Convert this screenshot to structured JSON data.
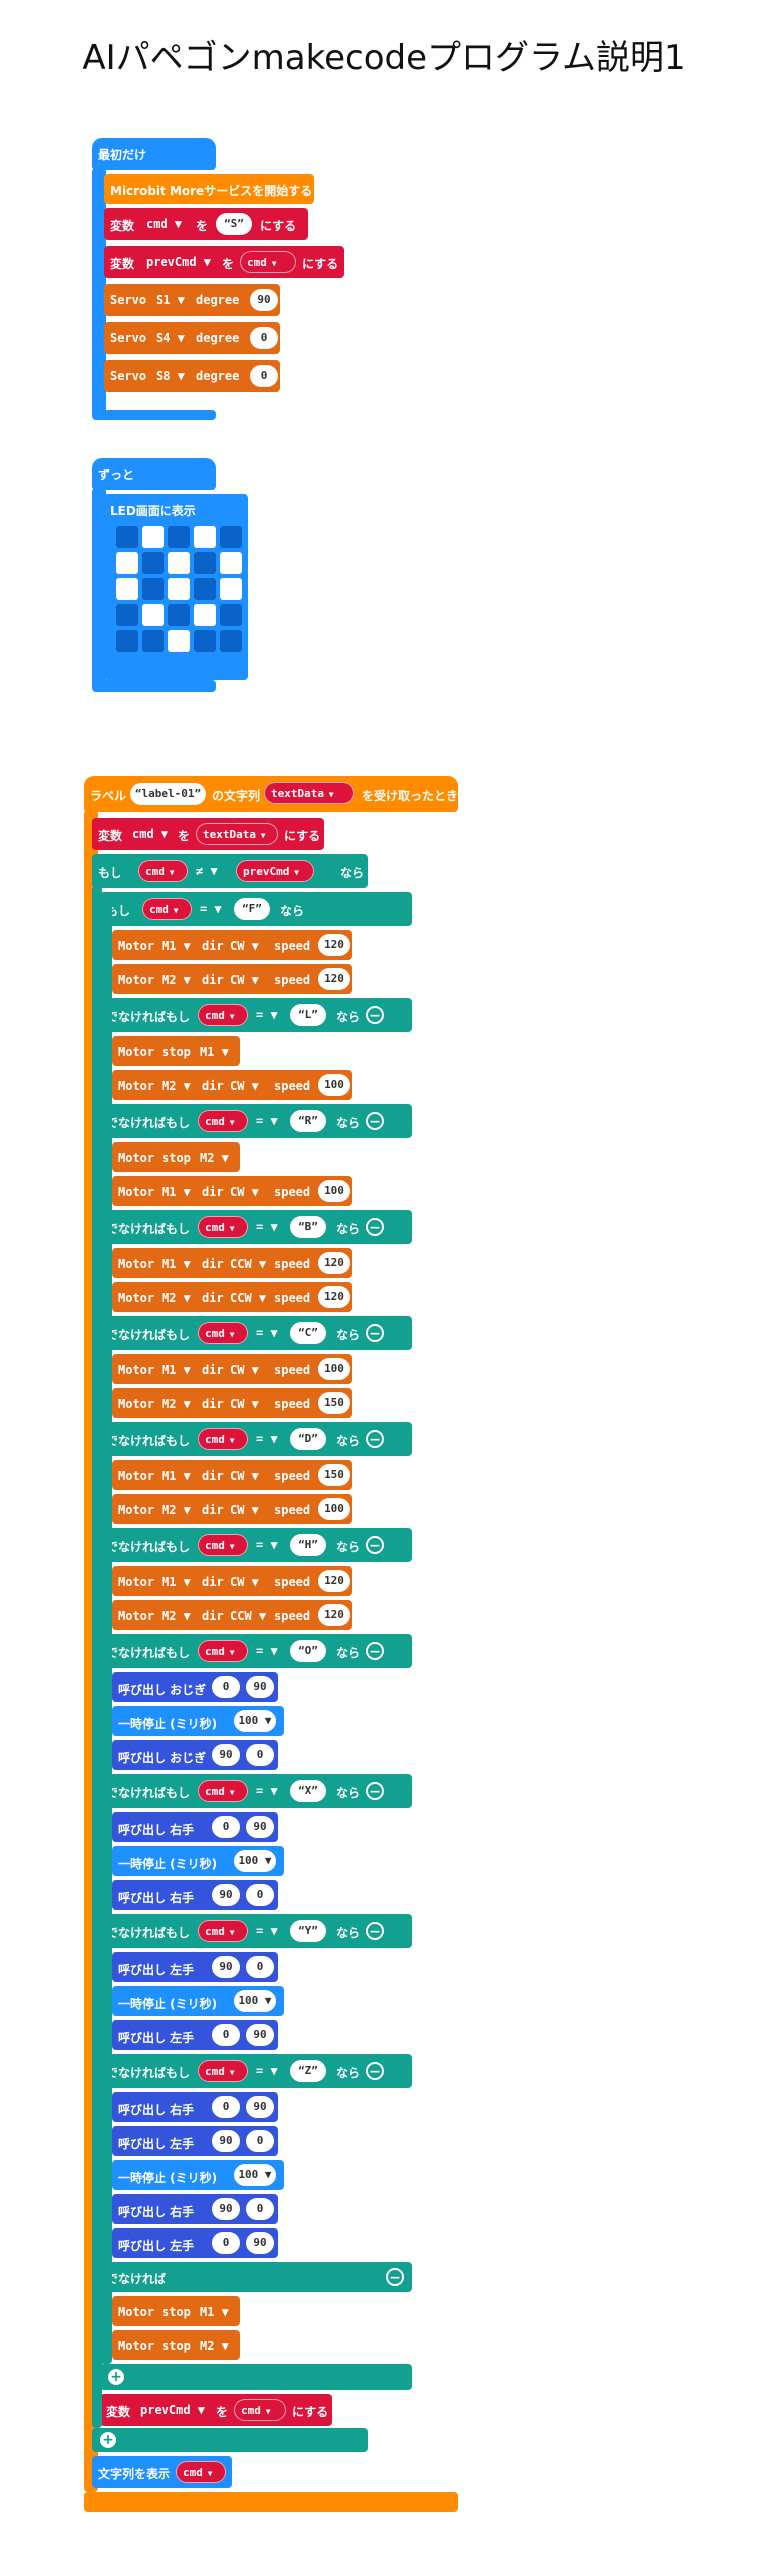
{
  "page": {
    "title": "AIパペゴンmakecodeプログラム説明1"
  },
  "colors": {
    "basic_blue": "#1e90ff",
    "variable_red": "#dc143c",
    "microbit_more_orange": "#ff8c00",
    "motor_orange": "#e36a14",
    "logic_teal": "#12a090",
    "function_blue": "#3455db",
    "led_on": "#ffffff",
    "led_off": "#0b63c9"
  },
  "on_start": {
    "label": "最初だけ",
    "start_service": "Microbit Moreサービスを開始する",
    "set_cmd": {
      "kw": "変数",
      "var": "cmd",
      "to": "を",
      "value": "S",
      "suffix": "にする"
    },
    "set_prev": {
      "kw": "変数",
      "var": "prevCmd",
      "to": "を",
      "value": "cmd",
      "suffix": "にする"
    },
    "servos": [
      {
        "name": "Servo",
        "pin": "S1",
        "degree_label": "degree",
        "value": "90"
      },
      {
        "name": "Servo",
        "pin": "S4",
        "degree_label": "degree",
        "value": "0"
      },
      {
        "name": "Servo",
        "pin": "S8",
        "degree_label": "degree",
        "value": "0"
      }
    ]
  },
  "forever": {
    "label": "ずっと",
    "show_leds": "LED画面に表示",
    "leds": [
      [
        0,
        1,
        0,
        1,
        0
      ],
      [
        1,
        0,
        1,
        0,
        1
      ],
      [
        1,
        0,
        1,
        0,
        1
      ],
      [
        0,
        1,
        0,
        1,
        0
      ],
      [
        0,
        0,
        1,
        0,
        0
      ]
    ]
  },
  "label_event": {
    "label": "ラベル",
    "label_id": "label-01",
    "middle": "の文字列",
    "text_var": "textData",
    "suffix": "を受け取ったとき",
    "set_cmd": {
      "kw": "変数",
      "var": "cmd",
      "to": "を",
      "value": "textData",
      "suffix": "にする"
    },
    "if_kw": "もし",
    "then_kw": "なら",
    "elseif_kw": "でなければもし",
    "else_kw": "でなければ",
    "op_neq": "≠",
    "op_eq": "=",
    "outer_cmp": {
      "left": "cmd",
      "right": "prevCmd"
    },
    "motor_kw": "Motor",
    "dir_kw": "dir",
    "speed_kw": "speed",
    "stop_kw": "stop",
    "branches": [
      {
        "cmd": "F",
        "lines": [
          {
            "t": "motor",
            "m": "M1",
            "d": "CW",
            "s": "120"
          },
          {
            "t": "motor",
            "m": "M2",
            "d": "CW",
            "s": "120"
          }
        ]
      },
      {
        "cmd": "L",
        "lines": [
          {
            "t": "stop",
            "m": "M1"
          },
          {
            "t": "motor",
            "m": "M2",
            "d": "CW",
            "s": "100"
          }
        ]
      },
      {
        "cmd": "R",
        "lines": [
          {
            "t": "stop",
            "m": "M2"
          },
          {
            "t": "motor",
            "m": "M1",
            "d": "CW",
            "s": "100"
          }
        ]
      },
      {
        "cmd": "B",
        "lines": [
          {
            "t": "motor",
            "m": "M1",
            "d": "CCW",
            "s": "120"
          },
          {
            "t": "motor",
            "m": "M2",
            "d": "CCW",
            "s": "120"
          }
        ]
      },
      {
        "cmd": "C",
        "lines": [
          {
            "t": "motor",
            "m": "M1",
            "d": "CW",
            "s": "100"
          },
          {
            "t": "motor",
            "m": "M2",
            "d": "CW",
            "s": "150"
          }
        ]
      },
      {
        "cmd": "D",
        "lines": [
          {
            "t": "motor",
            "m": "M1",
            "d": "CW",
            "s": "150"
          },
          {
            "t": "motor",
            "m": "M2",
            "d": "CW",
            "s": "100"
          }
        ]
      },
      {
        "cmd": "H",
        "lines": [
          {
            "t": "motor",
            "m": "M1",
            "d": "CW",
            "s": "120"
          },
          {
            "t": "motor",
            "m": "M2",
            "d": "CCW",
            "s": "120"
          }
        ]
      },
      {
        "cmd": "O",
        "lines": [
          {
            "t": "call",
            "f": "呼び出し おじぎ",
            "a": "0",
            "b": "90"
          },
          {
            "t": "pause",
            "v": "100"
          },
          {
            "t": "call",
            "f": "呼び出し おじぎ",
            "a": "90",
            "b": "0"
          }
        ]
      },
      {
        "cmd": "X",
        "lines": [
          {
            "t": "call",
            "f": "呼び出し 右手",
            "a": "0",
            "b": "90"
          },
          {
            "t": "pause",
            "v": "100"
          },
          {
            "t": "call",
            "f": "呼び出し 右手",
            "a": "90",
            "b": "0"
          }
        ]
      },
      {
        "cmd": "Y",
        "lines": [
          {
            "t": "call",
            "f": "呼び出し 左手",
            "a": "90",
            "b": "0"
          },
          {
            "t": "pause",
            "v": "100"
          },
          {
            "t": "call",
            "f": "呼び出し 左手",
            "a": "0",
            "b": "90"
          }
        ]
      },
      {
        "cmd": "Z",
        "lines": [
          {
            "t": "call",
            "f": "呼び出し 右手",
            "a": "0",
            "b": "90"
          },
          {
            "t": "call",
            "f": "呼び出し 左手",
            "a": "90",
            "b": "0"
          },
          {
            "t": "pause",
            "v": "100"
          },
          {
            "t": "call",
            "f": "呼び出し 右手",
            "a": "90",
            "b": "0"
          },
          {
            "t": "call",
            "f": "呼び出し 左手",
            "a": "0",
            "b": "90"
          }
        ]
      }
    ],
    "pause_label": "一時停止 (ミリ秒)",
    "else_lines": [
      {
        "t": "stop",
        "m": "M1"
      },
      {
        "t": "stop",
        "m": "M2"
      }
    ],
    "set_prev": {
      "kw": "変数",
      "var": "prevCmd",
      "to": "を",
      "value": "cmd",
      "suffix": "にする"
    },
    "show_string": {
      "label": "文字列を表示",
      "value": "cmd"
    }
  }
}
